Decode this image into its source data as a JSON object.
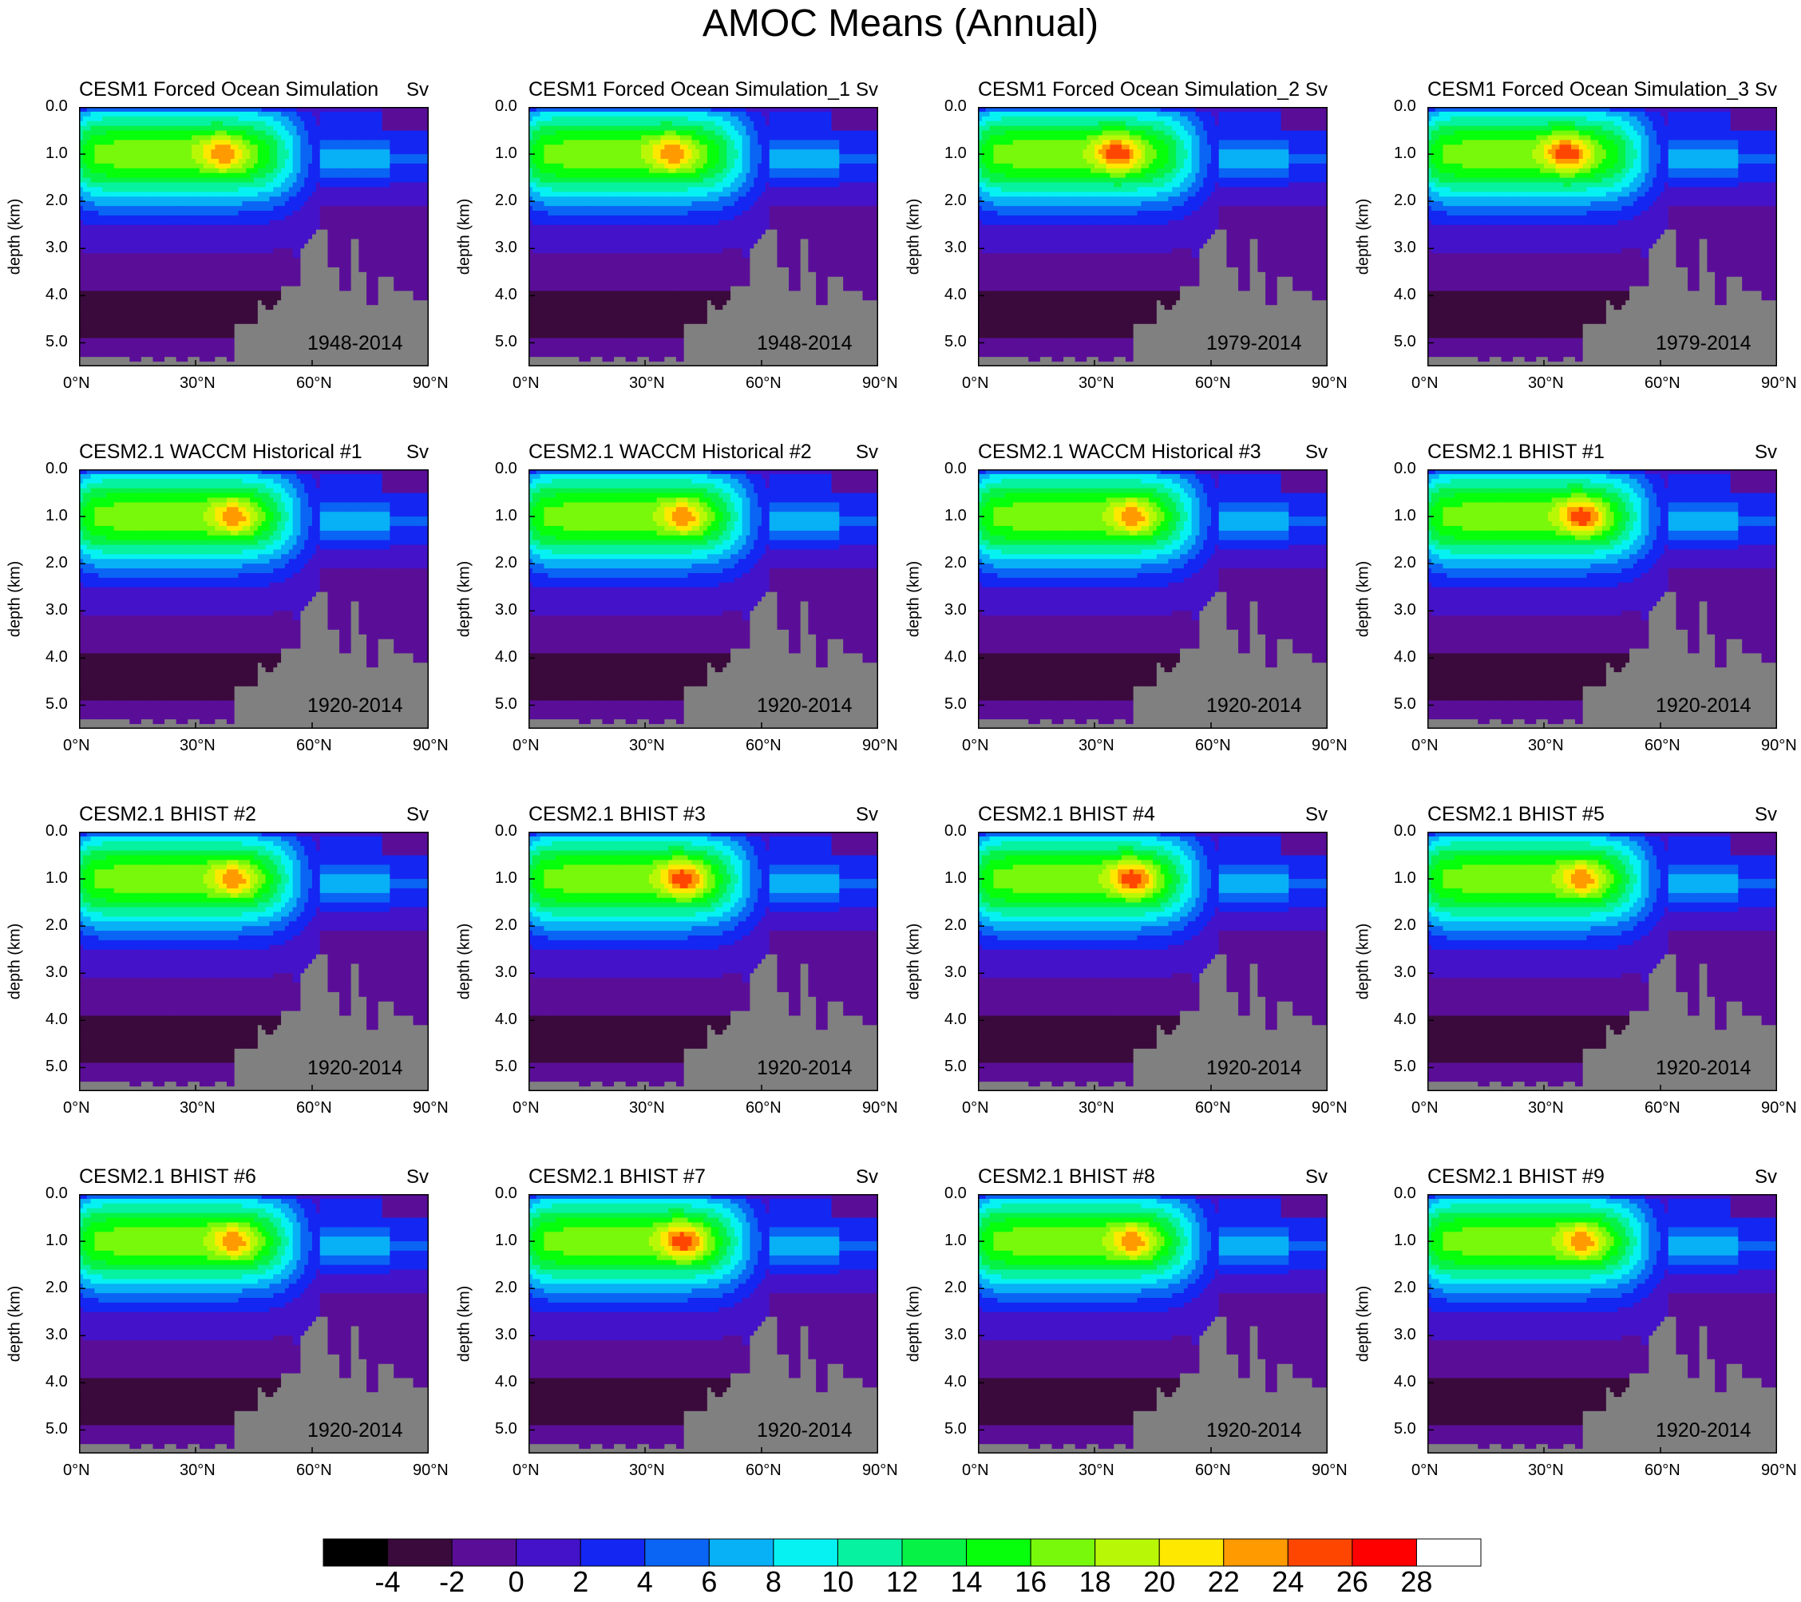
{
  "title": "AMOC Means (Annual)",
  "chart_data": {
    "type": "contour",
    "units": "Sv",
    "ylabel": "depth (km)",
    "x_ticks": [
      "0°N",
      "30°N",
      "60°N",
      "90°N"
    ],
    "x_tick_values": [
      0,
      30,
      60,
      90
    ],
    "y_ticks": [
      "0.0",
      "1.0",
      "2.0",
      "3.0",
      "4.0",
      "5.0"
    ],
    "y_tick_values": [
      0,
      1,
      2,
      3,
      4,
      5
    ],
    "xlim": [
      0,
      90
    ],
    "ylim": [
      5.5,
      0
    ],
    "panels": [
      {
        "title": "CESM1 Forced Ocean Simulation",
        "units": "Sv",
        "period": "1948-2014",
        "max": 24,
        "maxlat": 37
      },
      {
        "title": "CESM1 Forced Ocean Simulation_1",
        "units": "Sv",
        "period": "1948-2014",
        "max": 24,
        "maxlat": 37
      },
      {
        "title": "CESM1 Forced Ocean Simulation_2",
        "units": "Sv",
        "period": "1979-2014",
        "max": 26,
        "maxlat": 36
      },
      {
        "title": "CESM1 Forced Ocean Simulation_3",
        "units": "Sv",
        "period": "1979-2014",
        "max": 26,
        "maxlat": 36
      },
      {
        "title": "CESM2.1 WACCM Historical #1",
        "units": "Sv",
        "period": "1920-2014",
        "max": 24,
        "maxlat": 40
      },
      {
        "title": "CESM2.1 WACCM Historical #2",
        "units": "Sv",
        "period": "1920-2014",
        "max": 24,
        "maxlat": 40
      },
      {
        "title": "CESM2.1 WACCM Historical #3",
        "units": "Sv",
        "period": "1920-2014",
        "max": 24,
        "maxlat": 40
      },
      {
        "title": "CESM2.1 BHIST #1",
        "units": "Sv",
        "period": "1920-2014",
        "max": 26,
        "maxlat": 40
      },
      {
        "title": "CESM2.1 BHIST #2",
        "units": "Sv",
        "period": "1920-2014",
        "max": 24,
        "maxlat": 40
      },
      {
        "title": "CESM2.1 BHIST #3",
        "units": "Sv",
        "period": "1920-2014",
        "max": 26,
        "maxlat": 40
      },
      {
        "title": "CESM2.1 BHIST #4",
        "units": "Sv",
        "period": "1920-2014",
        "max": 26,
        "maxlat": 40
      },
      {
        "title": "CESM2.1 BHIST #5",
        "units": "Sv",
        "period": "1920-2014",
        "max": 24,
        "maxlat": 40
      },
      {
        "title": "CESM2.1 BHIST #6",
        "units": "Sv",
        "period": "1920-2014",
        "max": 24,
        "maxlat": 40
      },
      {
        "title": "CESM2.1 BHIST #7",
        "units": "Sv",
        "period": "1920-2014",
        "max": 26,
        "maxlat": 40
      },
      {
        "title": "CESM2.1 BHIST #8",
        "units": "Sv",
        "period": "1920-2014",
        "max": 24,
        "maxlat": 40
      },
      {
        "title": "CESM2.1 BHIST #9",
        "units": "Sv",
        "period": "1920-2014",
        "max": 24,
        "maxlat": 40
      }
    ],
    "colorbar": {
      "levels": [
        -4,
        -2,
        0,
        2,
        4,
        6,
        8,
        10,
        12,
        14,
        16,
        18,
        20,
        22,
        24,
        26,
        28
      ],
      "labels": [
        "-4",
        "-2",
        "0",
        "2",
        "4",
        "6",
        "8",
        "10",
        "12",
        "14",
        "16",
        "18",
        "20",
        "22",
        "24",
        "26",
        "28"
      ],
      "colors": [
        "#000000",
        "#3a0a3c",
        "#5a0e98",
        "#4412c8",
        "#1426f2",
        "#0a64f4",
        "#08b0f6",
        "#06f2f2",
        "#06f2a0",
        "#06f246",
        "#06ff0a",
        "#78f80a",
        "#b8f806",
        "#ffe800",
        "#ff9a00",
        "#ff4600",
        "#ff0000",
        "#ffffff"
      ]
    },
    "land_color": "#808080"
  }
}
